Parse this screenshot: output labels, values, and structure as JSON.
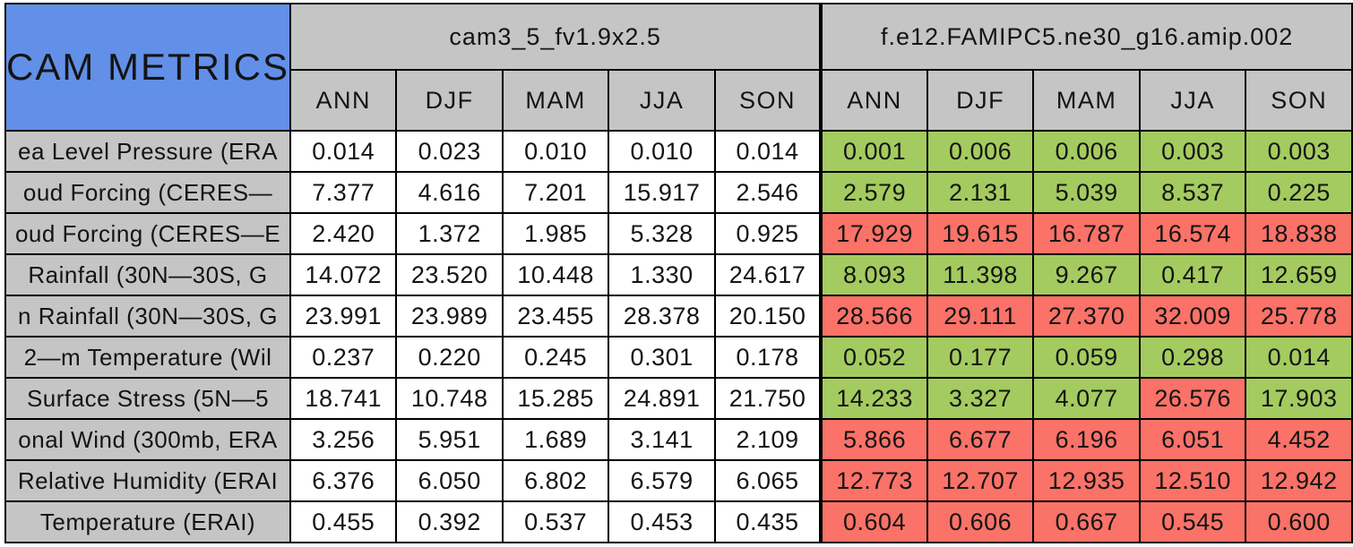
{
  "title": "CAM METRICS",
  "colors": {
    "title_bg": "#6290E8",
    "header_bg": "#C5C5C5",
    "model1_cell_bg": "#FFFFFF",
    "better_green": "#A4CB5F",
    "worse_red": "#FA7268",
    "border": "#000000"
  },
  "chart_data": {
    "type": "table",
    "title": "CAM METRICS",
    "column_groups": [
      "cam3_5_fv1.9x2.5",
      "f.e12.FAMIPC5.ne30_g16.amip.002"
    ],
    "seasons": [
      "ANN",
      "DJF",
      "MAM",
      "JJA",
      "SON"
    ],
    "cell_color_legend": {
      "better": "green",
      "worse": "red"
    },
    "rows": [
      {
        "label": "ea Level Pressure (ERA",
        "model1_values": [
          "0.014",
          "0.023",
          "0.010",
          "0.010",
          "0.014"
        ],
        "model2_values": [
          "0.001",
          "0.006",
          "0.006",
          "0.003",
          "0.003"
        ],
        "model2_status": [
          "better",
          "better",
          "better",
          "better",
          "better"
        ]
      },
      {
        "label": "oud Forcing (CERES—",
        "model1_values": [
          "7.377",
          "4.616",
          "7.201",
          "15.917",
          "2.546"
        ],
        "model2_values": [
          "2.579",
          "2.131",
          "5.039",
          "8.537",
          "0.225"
        ],
        "model2_status": [
          "better",
          "better",
          "better",
          "better",
          "better"
        ]
      },
      {
        "label": "oud Forcing (CERES—E",
        "model1_values": [
          "2.420",
          "1.372",
          "1.985",
          "5.328",
          "0.925"
        ],
        "model2_values": [
          "17.929",
          "19.615",
          "16.787",
          "16.574",
          "18.838"
        ],
        "model2_status": [
          "worse",
          "worse",
          "worse",
          "worse",
          "worse"
        ]
      },
      {
        "label": "Rainfall (30N—30S, G",
        "model1_values": [
          "14.072",
          "23.520",
          "10.448",
          "1.330",
          "24.617"
        ],
        "model2_values": [
          "8.093",
          "11.398",
          "9.267",
          "0.417",
          "12.659"
        ],
        "model2_status": [
          "better",
          "better",
          "better",
          "better",
          "better"
        ]
      },
      {
        "label": "n Rainfall (30N—30S, G",
        "model1_values": [
          "23.991",
          "23.989",
          "23.455",
          "28.378",
          "20.150"
        ],
        "model2_values": [
          "28.566",
          "29.111",
          "27.370",
          "32.009",
          "25.778"
        ],
        "model2_status": [
          "worse",
          "worse",
          "worse",
          "worse",
          "worse"
        ]
      },
      {
        "label": "2—m Temperature (Wil",
        "model1_values": [
          "0.237",
          "0.220",
          "0.245",
          "0.301",
          "0.178"
        ],
        "model2_values": [
          "0.052",
          "0.177",
          "0.059",
          "0.298",
          "0.014"
        ],
        "model2_status": [
          "better",
          "better",
          "better",
          "better",
          "better"
        ]
      },
      {
        "label": "Surface Stress (5N—5",
        "model1_values": [
          "18.741",
          "10.748",
          "15.285",
          "24.891",
          "21.750"
        ],
        "model2_values": [
          "14.233",
          "3.327",
          "4.077",
          "26.576",
          "17.903"
        ],
        "model2_status": [
          "better",
          "better",
          "better",
          "worse",
          "better"
        ]
      },
      {
        "label": "onal Wind (300mb, ERA",
        "model1_values": [
          "3.256",
          "5.951",
          "1.689",
          "3.141",
          "2.109"
        ],
        "model2_values": [
          "5.866",
          "6.677",
          "6.196",
          "6.051",
          "4.452"
        ],
        "model2_status": [
          "worse",
          "worse",
          "worse",
          "worse",
          "worse"
        ]
      },
      {
        "label": "Relative Humidity (ERAI",
        "model1_values": [
          "6.376",
          "6.050",
          "6.802",
          "6.579",
          "6.065"
        ],
        "model2_values": [
          "12.773",
          "12.707",
          "12.935",
          "12.510",
          "12.942"
        ],
        "model2_status": [
          "worse",
          "worse",
          "worse",
          "worse",
          "worse"
        ]
      },
      {
        "label": "Temperature (ERAI)",
        "model1_values": [
          "0.455",
          "0.392",
          "0.537",
          "0.453",
          "0.435"
        ],
        "model2_values": [
          "0.604",
          "0.606",
          "0.667",
          "0.545",
          "0.600"
        ],
        "model2_status": [
          "worse",
          "worse",
          "worse",
          "worse",
          "worse"
        ]
      }
    ]
  }
}
